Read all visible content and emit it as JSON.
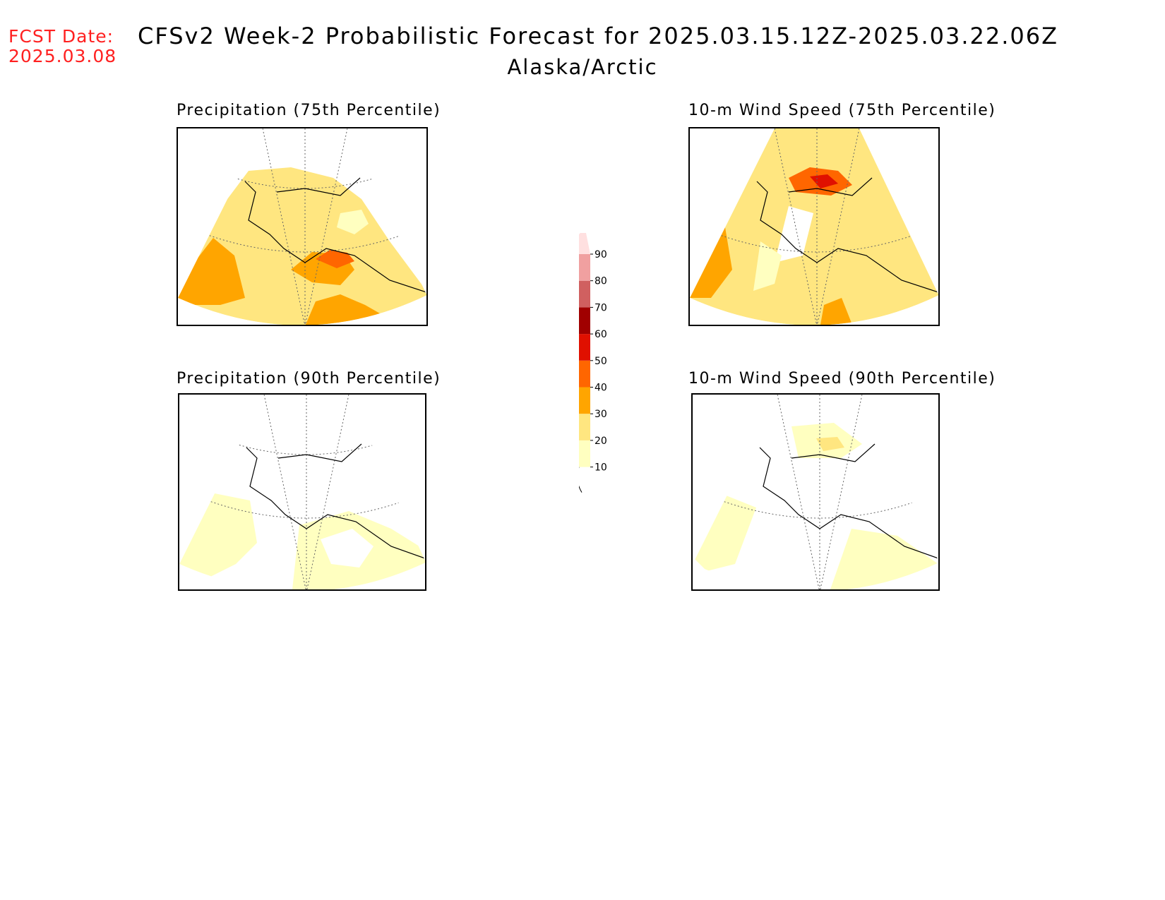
{
  "header": {
    "fcst_label": "FCST Date:",
    "fcst_date": "2025.03.08",
    "title": "CFSv2 Week-2 Probabilistic Forecast for 2025.03.15.12Z-2025.03.22.06Z",
    "region": "Alaska/Arctic"
  },
  "panels": [
    {
      "id": "precip75",
      "title": "Precipitation (75th Percentile)"
    },
    {
      "id": "wind75",
      "title": "10-m Wind Speed (75th Percentile)"
    },
    {
      "id": "precip90",
      "title": "Precipitation (90th Percentile)"
    },
    {
      "id": "wind90",
      "title": "10-m Wind Speed (90th Percentile)"
    }
  ],
  "colorbar": {
    "levels": [
      "10",
      "20",
      "30",
      "40",
      "50",
      "60",
      "70",
      "80",
      "90"
    ],
    "colors": {
      "c10_20": "#ffffc0",
      "c20_30": "#ffe680",
      "c30_40": "#ffa500",
      "c40_50": "#ff6600",
      "c50_60": "#e01000",
      "c60_70": "#a00000",
      "c70_80": "#d06060",
      "c80_90": "#f0a0a0",
      "c90": "#ffe0e0"
    }
  }
}
